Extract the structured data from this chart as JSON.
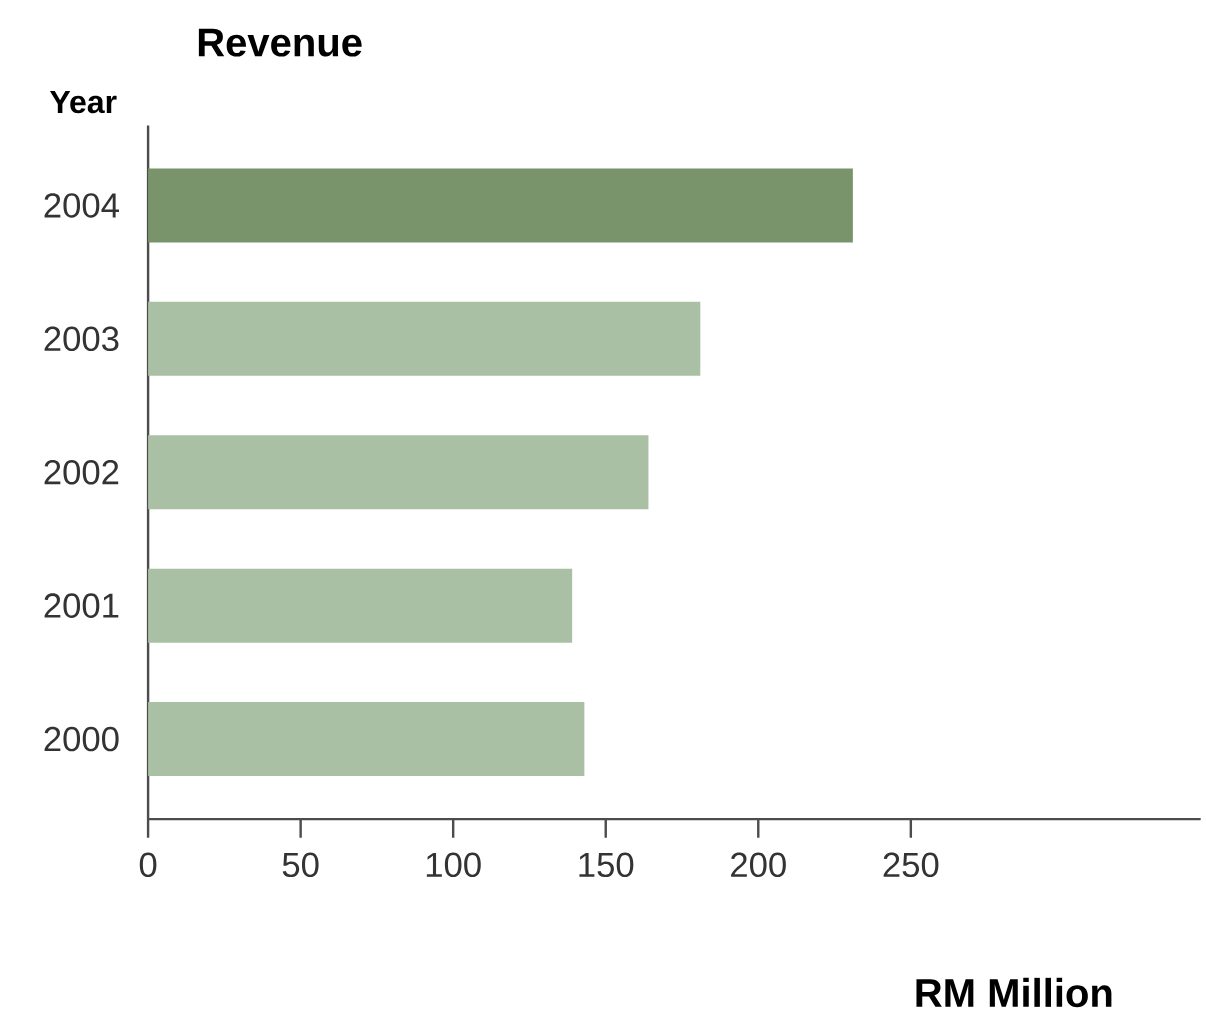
{
  "chart_data": {
    "type": "bar",
    "orientation": "horizontal",
    "title": "Revenue",
    "ylabel": "Year",
    "xlabel": "RM Million",
    "categories": [
      "2004",
      "2003",
      "2002",
      "2001",
      "2000"
    ],
    "values": [
      231,
      181,
      164,
      139,
      143
    ],
    "colors": [
      "#79946a",
      "#a9c0a4",
      "#a9c0a4",
      "#a9c0a4",
      "#a9c0a4"
    ],
    "xlim": [
      0,
      345
    ],
    "xticks": [
      0,
      50,
      100,
      150,
      200,
      250
    ],
    "grid": false
  }
}
